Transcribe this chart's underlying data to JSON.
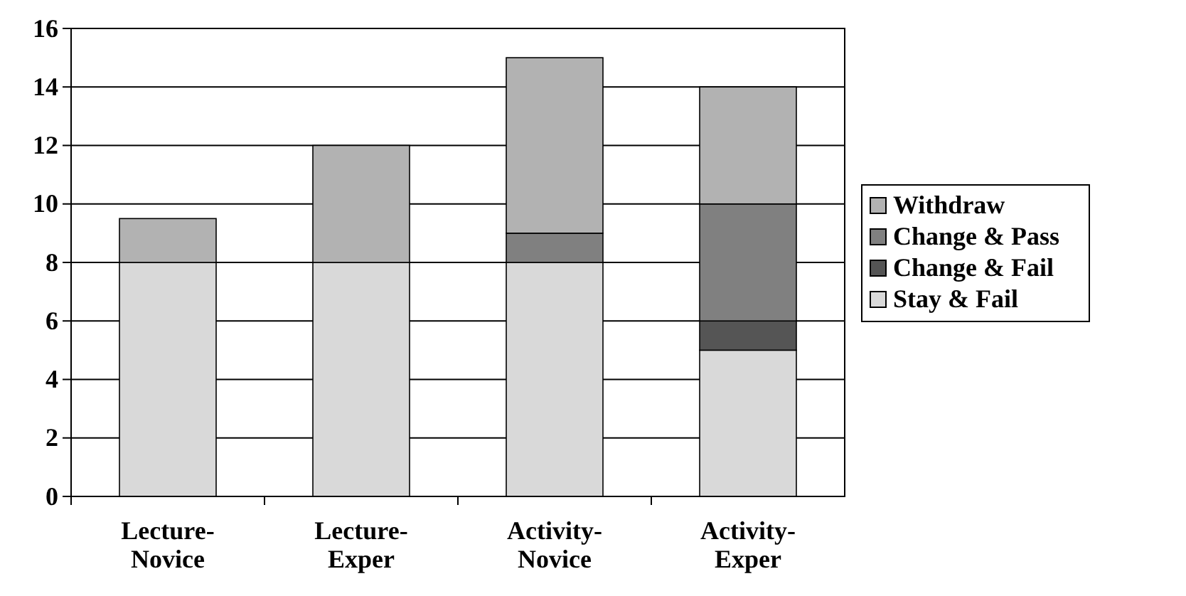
{
  "chart_data": {
    "type": "bar",
    "stacked": true,
    "categories": [
      "Lecture-Novice",
      "Lecture-Exper",
      "Activity-Novice",
      "Activity-Exper"
    ],
    "series": [
      {
        "name": "Stay & Fail",
        "color": "#d9d9d9",
        "values": [
          8,
          8,
          8,
          5
        ]
      },
      {
        "name": "Change & Fail",
        "color": "#555555",
        "values": [
          0,
          0,
          0,
          1
        ]
      },
      {
        "name": "Change & Pass",
        "color": "#808080",
        "values": [
          0,
          0,
          1,
          4
        ]
      },
      {
        "name": "Withdraw",
        "color": "#b2b2b2",
        "values": [
          1.5,
          4,
          6,
          4
        ]
      }
    ],
    "ylim": [
      0,
      16
    ],
    "yticks": [
      0,
      2,
      4,
      6,
      8,
      10,
      12,
      14,
      16
    ],
    "grid": "y",
    "legend": "right"
  }
}
